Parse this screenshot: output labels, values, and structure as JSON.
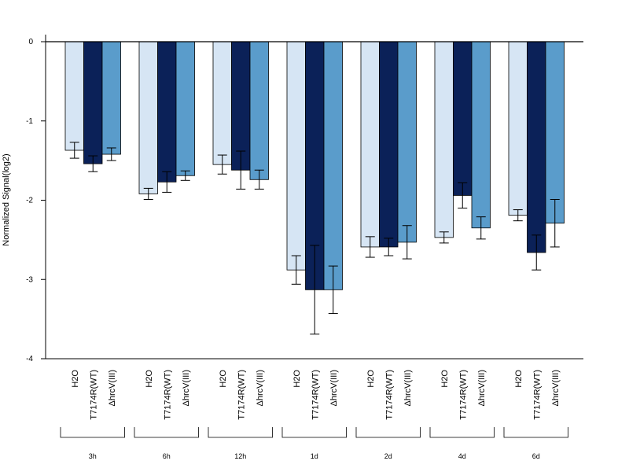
{
  "chart_data": {
    "type": "bar",
    "title": "",
    "xlabel": "",
    "ylabel": "Normalized Signal(log2)",
    "ylim": [
      -4,
      0
    ],
    "yticks": [
      0,
      -1,
      -2,
      -3,
      -4
    ],
    "grid": false,
    "legend": "none",
    "groups": [
      "3h",
      "6h",
      "12h",
      "1d",
      "2d",
      "4d",
      "6d"
    ],
    "series": [
      {
        "name": "H2O",
        "color": "#d6e5f4",
        "values": [
          -1.37,
          -1.92,
          -1.55,
          -2.88,
          -2.59,
          -2.47,
          -2.19
        ],
        "error": [
          0.1,
          0.07,
          0.12,
          0.18,
          0.13,
          0.07,
          0.07
        ]
      },
      {
        "name": "T7174R(WT)",
        "color": "#0b2158",
        "values": [
          -1.54,
          -1.77,
          -1.62,
          -3.13,
          -2.59,
          -1.94,
          -2.66
        ],
        "error": [
          0.1,
          0.13,
          0.24,
          0.56,
          0.11,
          0.16,
          0.22
        ]
      },
      {
        "name": "ΔhrcV(III)",
        "color": "#5a9ccb",
        "values": [
          -1.42,
          -1.69,
          -1.74,
          -3.13,
          -2.53,
          -2.35,
          -2.29
        ],
        "error": [
          0.08,
          0.06,
          0.12,
          0.3,
          0.21,
          0.14,
          0.3
        ]
      }
    ]
  }
}
